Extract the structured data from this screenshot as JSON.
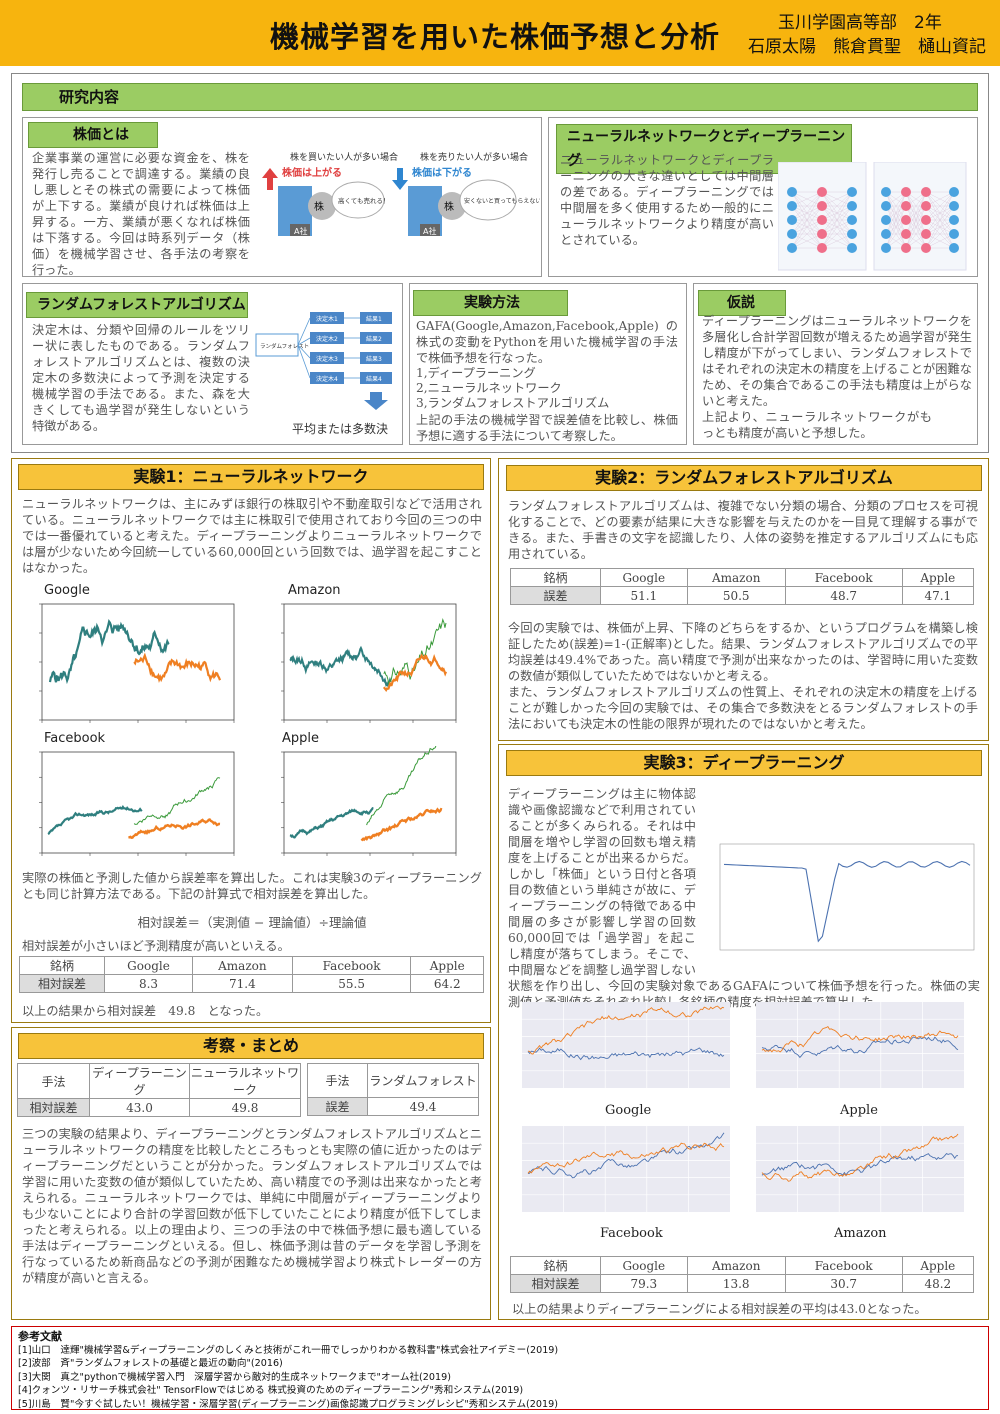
{
  "header": {
    "title": "機械学習を用いた株価予想と分析",
    "school": "玉川学園高等部　2年",
    "authors": "石原太陽　熊倉貫聖　樋山資記"
  },
  "research": {
    "heading": "研究内容",
    "stock": {
      "heading": "株価とは",
      "text": "企業事業の運営に必要な資金を、株を発行し売ることで調達する。業績の良し悪しとその株式の需要によって株価が上下する。業績が良ければ株価は上昇する。一方、業績が悪くなれば株価は下落する。今回は時系列データ（株価）を機械学習させ、各手法の考察を行った。",
      "buy_caption": "株を買いたい人が多い場合",
      "buy_label": "株価は上がる",
      "buy_bubble": "高くても売れる！",
      "sell_caption": "株を売りたい人が多い場合",
      "sell_label": "株価は下がる",
      "sell_bubble": "安くないと買ってもらえない・・",
      "company": "A社",
      "stock_tag": "株"
    },
    "nn": {
      "heading": "ニューラルネットワークとディープラーニング",
      "text": "ニューラルネットワークとディープラーニングの大きな違いとしては中間層の差である。ディープラーニングでは中間層を多く使用するため一般的にニューラルネットワークより精度が高いとされている。"
    },
    "rf": {
      "heading": "ランダムフォレストアルゴリズム",
      "text": "決定木は、分類や回帰のルールをツリー状に表したものである。ランダムフォレストアルゴリズムとは、複数の決定木の多数決によって予測を決定する機械学習の手法である。また、森を大きくしても過学習が発生しないという特徴がある。",
      "root": "ランダムフォレスト",
      "trees": [
        "決定木1",
        "決定木2",
        "決定木3",
        "決定木4"
      ],
      "results": [
        "結果1",
        "結果2",
        "結果3",
        "結果4"
      ],
      "final": "平均または多数決"
    },
    "method": {
      "heading": "実験方法",
      "text": "GAFA(Google,Amazon,Facebook,Apple)の株式の変動をPythonを用いた機械学習の手法で株価予想を行なった。",
      "items": [
        "1,ディープラーニング",
        "2,ニューラルネットワーク",
        "3,ランダムフォレストアルゴリズム"
      ],
      "text2": "上記の手法の機械学習で誤差値を比較し、株価予想に適する手法について考察した。"
    },
    "hypo": {
      "heading": "仮説",
      "text": "ディープラーニングはニューラルネットワークを多層化し合計学習回数が増えるため過学習が発生し精度が下がってしまい、ランダムフォレストではそれぞれの決定木の精度を上げることが困難なため、その集合であるこの手法も精度は上がらないと考えた。",
      "text2": "上記より、ニューラルネットワークがもっとも精度が高いと予想した。"
    }
  },
  "exp1": {
    "heading": "実験1：ニューラルネットワーク",
    "text": "ニューラルネットワークは、主にみずほ銀行の株取引や不動産取引などで活用されている。ニューラルネットワークでは主に株取引で使用されており今回の三つの中では一番優れていると考えた。ディープラーニングよりニューラルネットワークでは層が少ないため今回統一している60,000回という回数では、過学習を起こすことはなかった。",
    "charts": [
      "Google",
      "Amazon",
      "Facebook",
      "Apple"
    ],
    "text2": "実際の株価と予測した値から誤差率を算出した。これは実験3のディープラーニングとも同じ計算方法である。下記の計算式で相対誤差を算出した。",
    "formula": "相対誤差＝（実測値 − 理論値）÷理論値",
    "text3": "相対誤差が小さいほど予測精度が高いといえる。",
    "table": {
      "label_col": "銘柄",
      "label_row": "相対誤差",
      "names": [
        "Google",
        "Amazon",
        "Facebook",
        "Apple"
      ],
      "values": [
        "8.3",
        "71.4",
        "55.5",
        "64.2"
      ]
    },
    "result": "以上の結果から相対誤差　49.8　となった。"
  },
  "exp2": {
    "heading": "実験2：ランダムフォレストアルゴリズム",
    "text": "ランダムフォレストアルゴリズムは、複雑でない分類の場合、分類のプロセスを可視化することで、どの要素が結果に大きな影響を与えたのかを一目見て理解する事ができる。また、手書きの文字を認識したり、人体の姿勢を推定するアルゴリズムにも応用されている。",
    "table": {
      "label_col": "銘柄",
      "label_row": "誤差",
      "names": [
        "Google",
        "Amazon",
        "Facebook",
        "Apple"
      ],
      "values": [
        "51.1",
        "50.5",
        "48.7",
        "47.1"
      ]
    },
    "text2": "今回の実験では、株価が上昇、下降のどちらをするか、というプログラムを構築し検証したため(誤差)=1-(正解率)とした。結果、ランダムフォレストアルゴリズムでの平均誤差は49.4%であった。高い精度で予測が出来なかったのは、学習時に用いた変数の数値が類似していたためではないかと考える。",
    "text3": "また、ランダムフォレストアルゴリズムの性質上、それぞれの決定木の精度を上げることが難しかった今回の実験では、その集合で多数決をとるランダムフォレストの手法においても決定木の性能の限界が現れたのではないかと考えた。"
  },
  "exp3": {
    "heading": "実験3：ディープラーニング",
    "text": "ディープラーニングは主に物体認識や画像認識などで利用されていることが多くみられる。それは中間層を増やし学習の回数も増え精度を上げることが出来るからだ。しかし「株価」という日付と各項目の数値という単純さが故に、ディープラーニングの特徴である中間層の多さが影響し学習の回数60,000回では「過学習」を起こし精度が落ちてしまう。そこで、中間層などを調整し過学習しない状態を作り出し、今回の実験対象であるGAFAについて株価予想を行った。株価の実測値と予測値をそれぞれ比較し各銘柄の精度を相対誤差で算出した。",
    "charts": [
      "Google",
      "Apple",
      "Facebook",
      "Amazon"
    ],
    "table": {
      "label_col": "銘柄",
      "label_row": "相対誤差",
      "names": [
        "Google",
        "Amazon",
        "Facebook",
        "Apple"
      ],
      "values": [
        "79.3",
        "13.8",
        "30.7",
        "48.2"
      ]
    },
    "result": "以上の結果よりディープラーニングによる相対誤差の平均は43.0となった。"
  },
  "summary": {
    "heading": "考察・まとめ",
    "table1": {
      "h": [
        "手法",
        "ディープラーニング",
        "ニューラルネットワーク"
      ],
      "r": [
        "相対誤差",
        "43.0",
        "49.8"
      ]
    },
    "table2": {
      "h": [
        "手法",
        "ランダムフォレスト"
      ],
      "r": [
        "誤差",
        "49.4"
      ]
    },
    "text": "三つの実験の結果より、ディープラーニングとランダムフォレストアルゴリズムとニューラルネットワークの精度を比較したところもっとも実際の値に近かったのはディープラーニングだということが分かった。ランダムフォレストアルゴリズムでは学習に用いた変数の値が類似していたため、高い精度での予測は出来なかったと考えられる。ニューラルネットワークでは、単純に中間層がディープラーニングよりも少ないことにより合計の学習回数が低下していたことにより精度が低下してしまったと考えられる。以上の理由より、三つの手法の中で株価予想に最も適している手法はディープラーニングといえる。但し、株価予測は昔のデータを学習し予測を行なっているため新商品などの予測が困難なため機械学習より株式トレーダーの方が精度が高いと言える。"
  },
  "refs": {
    "heading": "参考文献",
    "items": [
      "[1]山口　達輝\"機械学習&ディープラーニングのしくみと技術がこれ一冊でしっかりわかる教科書\"株式会社アイデミー(2019)",
      "[2]波部　斉\"ランダムフォレストの基礎と最近の動向\"(2016)",
      "[3]大関　真之\"pythonで機械学習入門　深層学習から敵対的生成ネットワークまで\"オーム社(2019)",
      "[4]クォンツ・リサーチ株式会社\" TensorFlowではじめる 株式投資のためのディープラーニング\"秀和システム(2019)",
      "[5]川島　賢\"今すぐ試したい！機械学習・深層学習(ディープラーニング)画像認識プログラミングレシピ\"秀和システム(2019)"
    ]
  },
  "colors": {
    "header": "#f7b40e",
    "green_bar": "#9bcc63",
    "yellow_bar": "#f7c33a",
    "actual": "#2f7f7f",
    "predicted": "#ef7f22",
    "line_green": "#3a9a3a",
    "line_blue": "#4c72b0"
  }
}
